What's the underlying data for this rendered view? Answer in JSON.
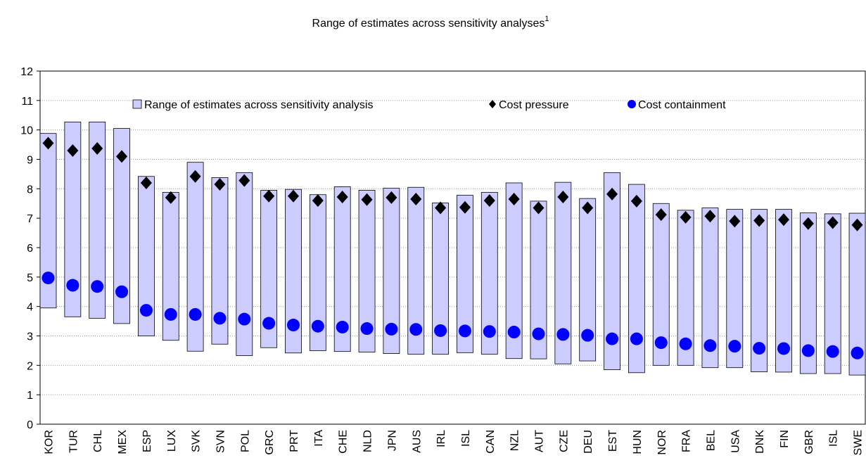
{
  "chart_data": {
    "type": "range-dot",
    "title": "Range of estimates across sensitivity analyses",
    "title_superscript": "1",
    "categories": [
      "KOR",
      "TUR",
      "CHL",
      "MEX",
      "ESP",
      "LUX",
      "SVK",
      "SVN",
      "POL",
      "GRC",
      "PRT",
      "ITA",
      "CHE",
      "NLD",
      "JPN",
      "AUS",
      "IRL",
      "ISL",
      "CAN",
      "NZL",
      "AUT",
      "CZE",
      "DEU",
      "EST",
      "HUN",
      "NOR",
      "FRA",
      "BEL",
      "USA",
      "DNK",
      "FIN",
      "GBR",
      "ISL",
      "SWE"
    ],
    "range": {
      "name": "Range of estimates across sensitivity analysis",
      "color": "#ccccff",
      "low": [
        3.95,
        3.65,
        3.6,
        3.42,
        3.0,
        2.85,
        2.48,
        2.72,
        2.33,
        2.6,
        2.42,
        2.5,
        2.47,
        2.45,
        2.4,
        2.38,
        2.38,
        2.43,
        2.38,
        2.23,
        2.22,
        2.05,
        2.15,
        1.85,
        1.75,
        2.0,
        2.0,
        1.92,
        1.92,
        1.78,
        1.77,
        1.72,
        1.72,
        1.67
      ],
      "high": [
        9.88,
        10.27,
        10.27,
        10.05,
        8.42,
        7.88,
        8.9,
        8.38,
        8.55,
        7.95,
        7.98,
        7.8,
        8.07,
        7.95,
        8.02,
        8.05,
        7.52,
        7.78,
        7.88,
        8.2,
        7.58,
        8.22,
        7.67,
        8.55,
        8.15,
        7.5,
        7.27,
        7.35,
        7.3,
        7.3,
        7.3,
        7.18,
        7.15,
        7.17
      ]
    },
    "series": [
      {
        "name": "Cost pressure",
        "color": "#000000",
        "marker": "diamond",
        "values": [
          9.55,
          9.3,
          9.37,
          9.1,
          8.2,
          7.7,
          8.42,
          8.15,
          8.28,
          7.75,
          7.75,
          7.6,
          7.72,
          7.63,
          7.7,
          7.65,
          7.35,
          7.37,
          7.6,
          7.65,
          7.35,
          7.72,
          7.35,
          7.82,
          7.58,
          7.12,
          7.03,
          7.07,
          6.9,
          6.92,
          6.95,
          6.82,
          6.85,
          6.77
        ]
      },
      {
        "name": "Cost containment",
        "color": "#0000ff",
        "marker": "circle",
        "values": [
          4.97,
          4.72,
          4.68,
          4.5,
          3.87,
          3.73,
          3.73,
          3.6,
          3.57,
          3.43,
          3.37,
          3.33,
          3.3,
          3.25,
          3.23,
          3.22,
          3.18,
          3.17,
          3.15,
          3.13,
          3.07,
          3.05,
          3.02,
          2.9,
          2.9,
          2.77,
          2.73,
          2.67,
          2.65,
          2.58,
          2.57,
          2.5,
          2.47,
          2.42
        ]
      }
    ],
    "ylim": [
      0,
      12
    ],
    "yticks": [
      0,
      1,
      2,
      3,
      4,
      5,
      6,
      7,
      8,
      9,
      10,
      11,
      12
    ],
    "grid": true,
    "legend": "top"
  }
}
